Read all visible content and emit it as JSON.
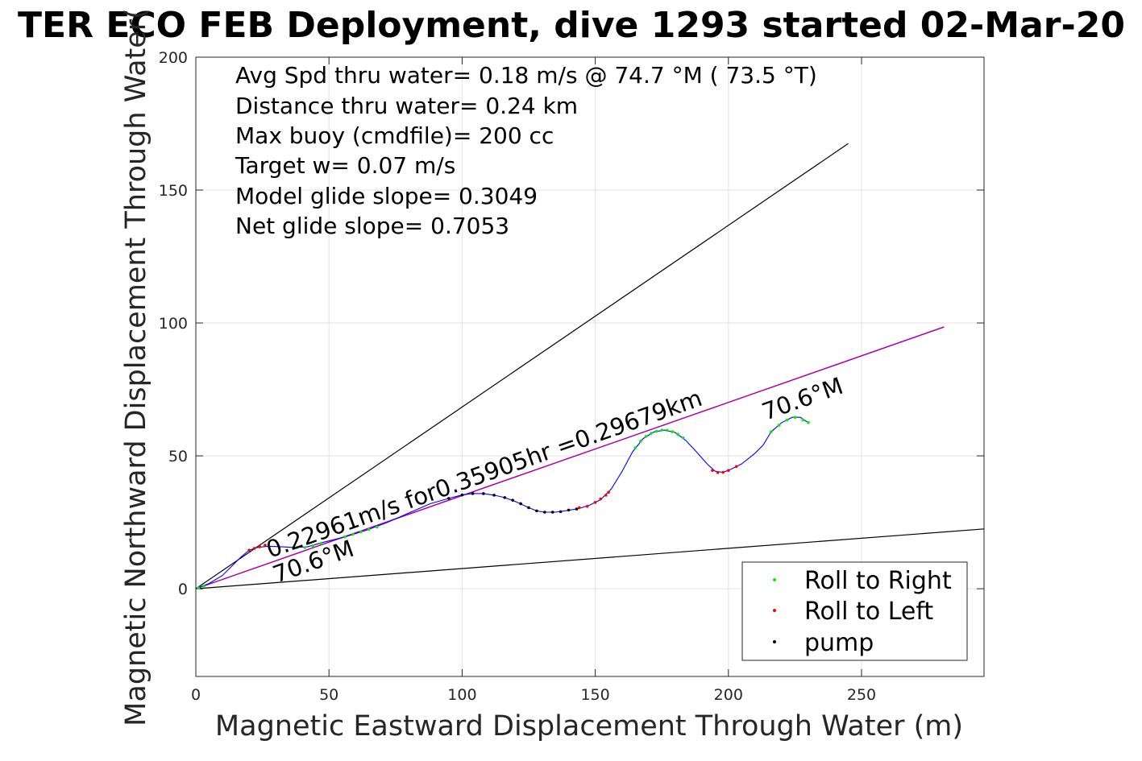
{
  "chart_data": {
    "type": "scatter",
    "title": "TER ECO FEB Deployment, dive 1293 started 02-Mar-20",
    "xlabel": "Magnetic Eastward Displacement Through Water (m)",
    "ylabel": "Magnetic Northward Displacement Through Water(",
    "xlim": [
      0,
      296
    ],
    "ylim": [
      -33,
      200
    ],
    "xticks": [
      0,
      50,
      100,
      150,
      200,
      250
    ],
    "yticks": [
      0,
      50,
      100,
      150,
      200
    ],
    "grid": true,
    "legend_position": "bottom-right",
    "colors": {
      "track": "#0000ff",
      "roll_right": "#00ee00",
      "roll_left": "#ff0000",
      "pump": "#000000",
      "mean_line": "#aa00aa",
      "envelope": "#000000"
    },
    "info_lines": [
      "Avg Spd thru water=  0.18 m/s @  74.7 °M ( 73.5 °T)",
      "Distance thru water=  0.24 km",
      "Max buoy (cmdfile)= 200 cc",
      "Target w= 0.07 m/s",
      "Model glide slope= 0.3049",
      "Net glide slope= 0.7053"
    ],
    "speed_annotation": "0.22961m/s for0.35905hr =0.29679km",
    "heading_start": "70.6°M",
    "heading_end": "70.6°M",
    "series": [
      {
        "name": "Roll to Right",
        "points": [
          [
            1,
            0.3
          ],
          [
            3,
            1
          ],
          [
            38,
            15.5
          ],
          [
            41,
            15.5
          ],
          [
            44,
            16.2
          ],
          [
            47,
            17
          ],
          [
            56,
            19.5
          ],
          [
            59,
            20.5
          ],
          [
            62,
            21.4
          ],
          [
            65,
            22.3
          ],
          [
            68,
            23.2
          ],
          [
            165,
            53
          ],
          [
            167,
            55.5
          ],
          [
            169,
            57.3
          ],
          [
            171,
            58.5
          ],
          [
            173,
            59.3
          ],
          [
            175,
            59.7
          ],
          [
            177,
            59.6
          ],
          [
            179,
            59.1
          ],
          [
            181,
            58.1
          ],
          [
            183,
            56.8
          ],
          [
            216,
            59
          ],
          [
            219,
            61.5
          ],
          [
            222,
            63.5
          ],
          [
            225,
            64.5
          ],
          [
            228,
            63.5
          ],
          [
            230,
            62.5
          ]
        ]
      },
      {
        "name": "Roll to Left",
        "points": [
          [
            20,
            14.5
          ],
          [
            22,
            15.2
          ],
          [
            24,
            15.8
          ],
          [
            26,
            16.4
          ],
          [
            144,
            30.5
          ],
          [
            147,
            31
          ],
          [
            150,
            32.5
          ],
          [
            152,
            33.8
          ],
          [
            154,
            35.2
          ],
          [
            155,
            36.3
          ],
          [
            194,
            44.5
          ],
          [
            196,
            43.7
          ],
          [
            198,
            43.8
          ],
          [
            200,
            44.5
          ],
          [
            203,
            46
          ]
        ]
      },
      {
        "name": "pump",
        "points": [
          [
            95,
            34
          ],
          [
            100,
            35.3
          ],
          [
            104,
            35.8
          ],
          [
            108,
            35.8
          ],
          [
            112,
            35.2
          ],
          [
            116,
            34.3
          ],
          [
            119,
            33.3
          ],
          [
            122,
            32
          ],
          [
            125,
            30.5
          ],
          [
            128,
            29.3
          ],
          [
            131,
            28.8
          ],
          [
            134,
            28.8
          ],
          [
            137,
            29
          ],
          [
            140,
            29.6
          ],
          [
            143,
            30
          ]
        ]
      }
    ],
    "track": [
      [
        0,
        0
      ],
      [
        5,
        2
      ],
      [
        10,
        5
      ],
      [
        14,
        9
      ],
      [
        17,
        12
      ],
      [
        20,
        14.5
      ],
      [
        23,
        15.5
      ],
      [
        27,
        16
      ],
      [
        32,
        15.8
      ],
      [
        37,
        15.5
      ],
      [
        42,
        15.8
      ],
      [
        48,
        17.5
      ],
      [
        56,
        19.5
      ],
      [
        64,
        22
      ],
      [
        72,
        25
      ],
      [
        80,
        28.5
      ],
      [
        88,
        32
      ],
      [
        95,
        34
      ],
      [
        100,
        35.3
      ],
      [
        104,
        35.8
      ],
      [
        108,
        35.8
      ],
      [
        112,
        35.2
      ],
      [
        116,
        34.3
      ],
      [
        120,
        32.8
      ],
      [
        125,
        30.5
      ],
      [
        128,
        29.3
      ],
      [
        131,
        28.8
      ],
      [
        135,
        28.8
      ],
      [
        140,
        29.5
      ],
      [
        144,
        30.2
      ],
      [
        148,
        31.5
      ],
      [
        152,
        33.5
      ],
      [
        156,
        37.5
      ],
      [
        160,
        44
      ],
      [
        164,
        51.5
      ],
      [
        168,
        56.5
      ],
      [
        172,
        59
      ],
      [
        176,
        59.7
      ],
      [
        180,
        58.8
      ],
      [
        184,
        55.8
      ],
      [
        188,
        51.5
      ],
      [
        192,
        47
      ],
      [
        195,
        44.2
      ],
      [
        198,
        43.8
      ],
      [
        201,
        45
      ],
      [
        205,
        47
      ],
      [
        210,
        51
      ],
      [
        213,
        54
      ],
      [
        216,
        59
      ],
      [
        220,
        62.5
      ],
      [
        224,
        64.5
      ],
      [
        227,
        64.5
      ],
      [
        230,
        62.5
      ]
    ],
    "mean_line": [
      [
        0,
        0
      ],
      [
        281,
        98.5
      ]
    ],
    "envelope_upper": [
      [
        0,
        0
      ],
      [
        245,
        167.5
      ]
    ],
    "envelope_lower": [
      [
        0,
        0
      ],
      [
        296,
        22.5
      ]
    ]
  }
}
